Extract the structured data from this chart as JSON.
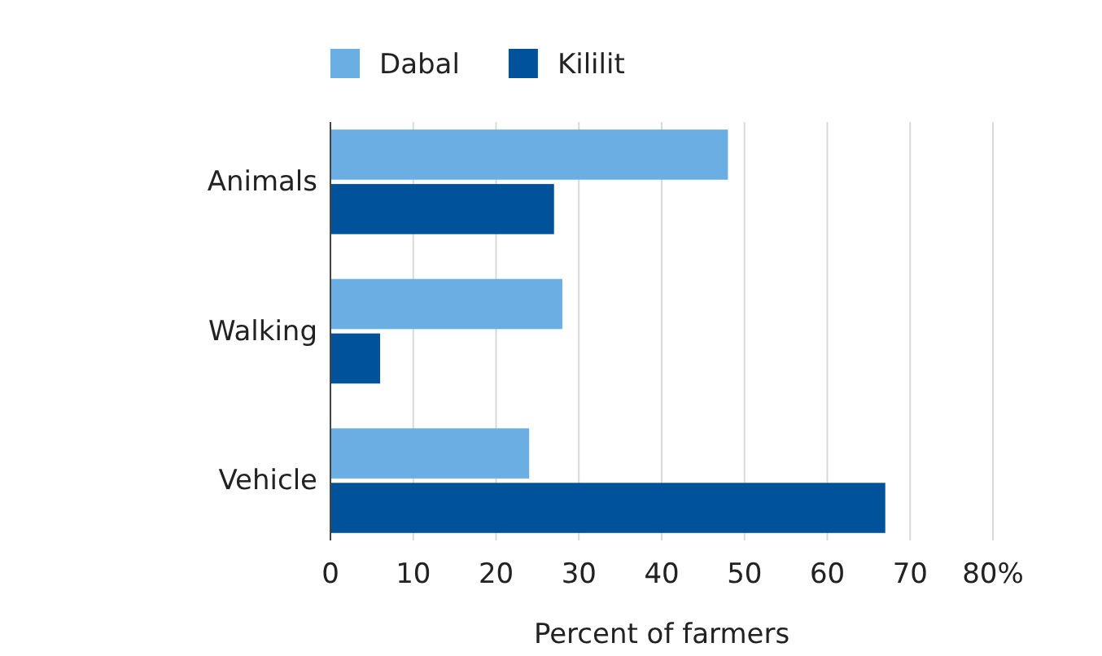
{
  "chart_data": {
    "type": "bar",
    "orientation": "horizontal",
    "categories": [
      "Animals",
      "Walking",
      "Vehicle"
    ],
    "series": [
      {
        "name": "Dabal",
        "color": "#6aaee4",
        "values": [
          48,
          28,
          24
        ]
      },
      {
        "name": "Kililit",
        "color": "#00529b",
        "values": [
          27,
          6,
          67
        ]
      }
    ],
    "xlim": [
      0,
      80
    ],
    "xticks": [
      0,
      10,
      20,
      30,
      40,
      50,
      60,
      70,
      {
        "value": 80,
        "label": "80%"
      }
    ],
    "xlabel": "Percent of farmers",
    "grid": "x",
    "legend": "top"
  }
}
